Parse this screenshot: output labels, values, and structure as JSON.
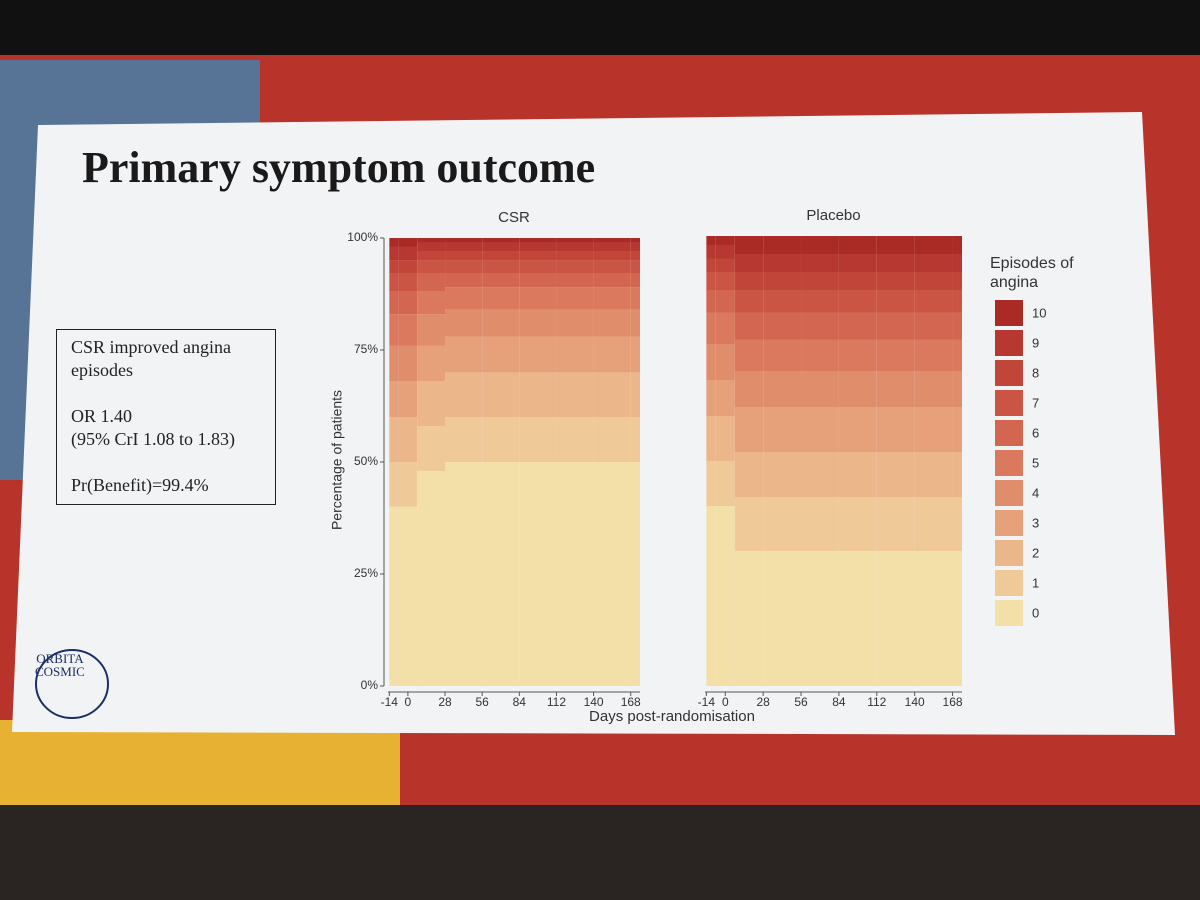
{
  "slide": {
    "title": "Primary symptom outcome",
    "box": [
      "CSR improved angina episodes",
      "OR 1.40",
      "(95% CrI 1.08 to 1.83)",
      "Pr(Benefit)=99.4%"
    ],
    "logo": [
      "ORBITA",
      "COSMIC"
    ]
  },
  "shared_axes": {
    "xlabel": "Days post-randomisation",
    "ylabel": "Percentage of patients"
  },
  "legend": {
    "title": "Episodes of angina"
  },
  "chart_data": [
    {
      "type": "stacked_area",
      "title": "CSR",
      "x": [
        -14,
        -7,
        7,
        28,
        56,
        84,
        112,
        140,
        168
      ],
      "xlim": [
        -15,
        175
      ],
      "xticks": [
        -14,
        0,
        28,
        56,
        84,
        112,
        140,
        168
      ],
      "ylim": [
        0,
        100
      ],
      "yticks": [
        {
          "value": 0,
          "label": "0%"
        },
        {
          "value": 25,
          "label": "25%"
        },
        {
          "value": 50,
          "label": "50%"
        },
        {
          "value": 75,
          "label": "75%"
        },
        {
          "value": 100,
          "label": "100%"
        }
      ],
      "series": [
        {
          "name": "0",
          "color": "#f3dfa8",
          "values": [
            40,
            40,
            48,
            50,
            50,
            50,
            50,
            50,
            50
          ]
        },
        {
          "name": "1",
          "color": "#f0c999",
          "values": [
            10,
            10,
            10,
            10,
            10,
            10,
            10,
            10,
            10
          ]
        },
        {
          "name": "2",
          "color": "#ebb68a",
          "values": [
            10,
            10,
            10,
            10,
            10,
            10,
            10,
            10,
            10
          ]
        },
        {
          "name": "3",
          "color": "#e6a17a",
          "values": [
            8,
            8,
            8,
            8,
            8,
            8,
            8,
            8,
            8
          ]
        },
        {
          "name": "4",
          "color": "#e08d6b",
          "values": [
            8,
            8,
            7,
            6,
            6,
            6,
            6,
            6,
            6
          ]
        },
        {
          "name": "5",
          "color": "#da795d",
          "values": [
            7,
            7,
            5,
            5,
            5,
            5,
            5,
            5,
            5
          ]
        },
        {
          "name": "6",
          "color": "#d36650",
          "values": [
            5,
            5,
            4,
            3,
            3,
            3,
            3,
            3,
            3
          ]
        },
        {
          "name": "7",
          "color": "#cb5544",
          "values": [
            4,
            4,
            3,
            3,
            3,
            3,
            3,
            3,
            3
          ]
        },
        {
          "name": "8",
          "color": "#c24539",
          "values": [
            3,
            3,
            2,
            2,
            2,
            2,
            2,
            2,
            2
          ]
        },
        {
          "name": "9",
          "color": "#b73830",
          "values": [
            3,
            3,
            2,
            2,
            2,
            2,
            2,
            2,
            2
          ]
        },
        {
          "name": "10",
          "color": "#aa2b26",
          "values": [
            2,
            2,
            1,
            1,
            1,
            1,
            1,
            1,
            1
          ]
        }
      ]
    },
    {
      "type": "stacked_area",
      "title": "Placebo",
      "x": [
        -14,
        -7,
        7,
        28,
        56,
        84,
        112,
        140,
        168
      ],
      "xlim": [
        -15,
        175
      ],
      "xticks": [
        -14,
        0,
        28,
        56,
        84,
        112,
        140,
        168
      ],
      "ylim": [
        0,
        100
      ],
      "series": [
        {
          "name": "0",
          "color": "#f3dfa8",
          "values": [
            40,
            40,
            30,
            30,
            30,
            30,
            30,
            30,
            30
          ]
        },
        {
          "name": "1",
          "color": "#f0c999",
          "values": [
            10,
            10,
            12,
            12,
            12,
            12,
            12,
            12,
            12
          ]
        },
        {
          "name": "2",
          "color": "#ebb68a",
          "values": [
            10,
            10,
            10,
            10,
            10,
            10,
            10,
            10,
            10
          ]
        },
        {
          "name": "3",
          "color": "#e6a17a",
          "values": [
            8,
            8,
            10,
            10,
            10,
            10,
            10,
            10,
            10
          ]
        },
        {
          "name": "4",
          "color": "#e08d6b",
          "values": [
            8,
            8,
            8,
            8,
            8,
            8,
            8,
            8,
            8
          ]
        },
        {
          "name": "5",
          "color": "#da795d",
          "values": [
            7,
            7,
            7,
            7,
            7,
            7,
            7,
            7,
            7
          ]
        },
        {
          "name": "6",
          "color": "#d36650",
          "values": [
            5,
            5,
            6,
            6,
            6,
            6,
            6,
            6,
            6
          ]
        },
        {
          "name": "7",
          "color": "#cb5544",
          "values": [
            4,
            4,
            5,
            5,
            5,
            5,
            5,
            5,
            5
          ]
        },
        {
          "name": "8",
          "color": "#c24539",
          "values": [
            3,
            3,
            4,
            4,
            4,
            4,
            4,
            4,
            4
          ]
        },
        {
          "name": "9",
          "color": "#b73830",
          "values": [
            3,
            3,
            4,
            4,
            4,
            4,
            4,
            4,
            4
          ]
        },
        {
          "name": "10",
          "color": "#aa2b26",
          "values": [
            2,
            2,
            4,
            4,
            4,
            4,
            4,
            4,
            4
          ]
        }
      ]
    }
  ]
}
